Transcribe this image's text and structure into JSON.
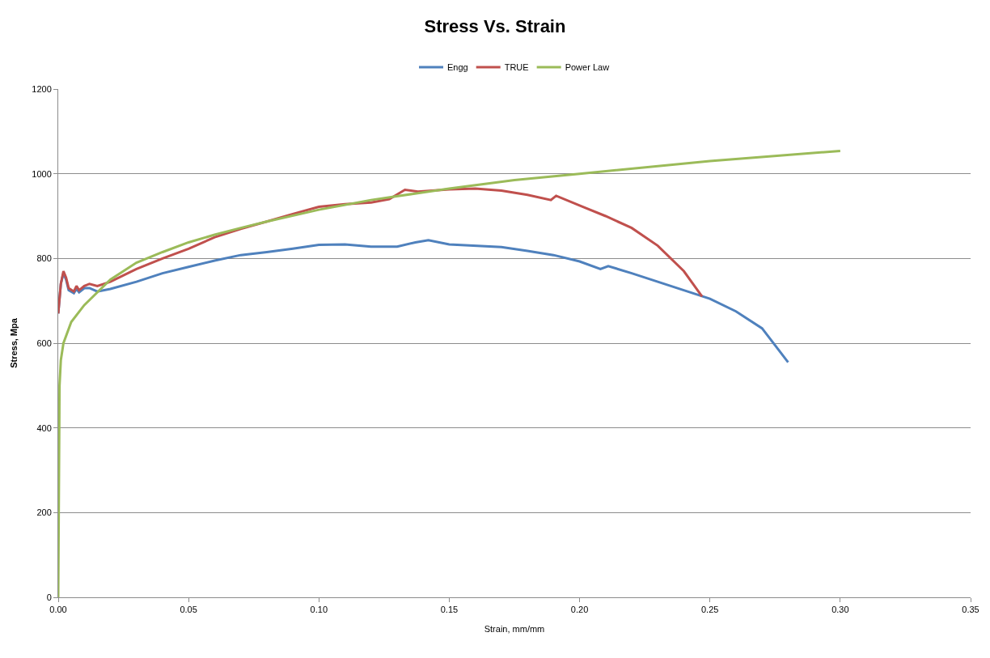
{
  "chart_data": {
    "type": "line",
    "title": "Stress Vs. Strain",
    "xlabel": "Strain, mm/mm",
    "ylabel": "Stress, Mpa",
    "xlim": [
      0,
      0.35
    ],
    "xticks": [
      {
        "value": 0,
        "label": "0.00"
      },
      {
        "value": 0.05,
        "label": "0.05"
      },
      {
        "value": 0.1,
        "label": "0.10"
      },
      {
        "value": 0.15,
        "label": "0.15"
      },
      {
        "value": 0.2,
        "label": "0.20"
      },
      {
        "value": 0.25,
        "label": "0.25"
      },
      {
        "value": 0.3,
        "label": "0.30"
      },
      {
        "value": 0.35,
        "label": "0.35"
      }
    ],
    "ylim": [
      0,
      1200
    ],
    "yticks": [
      0,
      200,
      400,
      600,
      800,
      1000,
      1200
    ],
    "grid": "y",
    "legend": "top",
    "marker": "none",
    "line_style": "solid",
    "series": [
      {
        "name": "Engg",
        "color": "#4f81bd",
        "x": [
          0,
          0.001,
          0.002,
          0.003,
          0.004,
          0.006,
          0.007,
          0.008,
          0.01,
          0.012,
          0.015,
          0.02,
          0.03,
          0.04,
          0.05,
          0.06,
          0.07,
          0.08,
          0.09,
          0.1,
          0.11,
          0.12,
          0.13,
          0.137,
          0.142,
          0.15,
          0.17,
          0.18,
          0.19,
          0.2,
          0.208,
          0.211,
          0.22,
          0.23,
          0.24,
          0.25,
          0.26,
          0.27,
          0.28
        ],
        "values": [
          670,
          740,
          765,
          750,
          725,
          718,
          728,
          720,
          730,
          730,
          722,
          728,
          745,
          765,
          780,
          795,
          808,
          815,
          823,
          832,
          833,
          828,
          828,
          838,
          843,
          833,
          827,
          818,
          808,
          793,
          775,
          782,
          765,
          745,
          725,
          705,
          675,
          635,
          555
        ]
      },
      {
        "name": "TRUE",
        "color": "#c0504d",
        "x": [
          0,
          0.001,
          0.002,
          0.003,
          0.004,
          0.006,
          0.007,
          0.008,
          0.01,
          0.012,
          0.015,
          0.02,
          0.03,
          0.04,
          0.05,
          0.06,
          0.07,
          0.08,
          0.09,
          0.1,
          0.11,
          0.12,
          0.127,
          0.133,
          0.138,
          0.15,
          0.16,
          0.17,
          0.18,
          0.189,
          0.191,
          0.2,
          0.21,
          0.22,
          0.23,
          0.24,
          0.247
        ],
        "values": [
          670,
          740,
          770,
          755,
          730,
          722,
          735,
          725,
          735,
          740,
          735,
          745,
          775,
          800,
          823,
          850,
          870,
          887,
          905,
          922,
          928,
          932,
          940,
          962,
          958,
          963,
          965,
          960,
          950,
          938,
          948,
          925,
          900,
          872,
          830,
          770,
          710
        ]
      },
      {
        "name": "Power Law",
        "color": "#9bbb59",
        "x": [
          0,
          0.0005,
          0.001,
          0.002,
          0.005,
          0.01,
          0.02,
          0.03,
          0.04,
          0.05,
          0.06,
          0.07,
          0.08,
          0.1,
          0.12,
          0.15,
          0.175,
          0.2,
          0.25,
          0.3
        ],
        "values": [
          0,
          500,
          560,
          600,
          650,
          690,
          750,
          790,
          815,
          838,
          856,
          872,
          887,
          915,
          938,
          965,
          985,
          1000,
          1030,
          1054
        ]
      }
    ]
  }
}
